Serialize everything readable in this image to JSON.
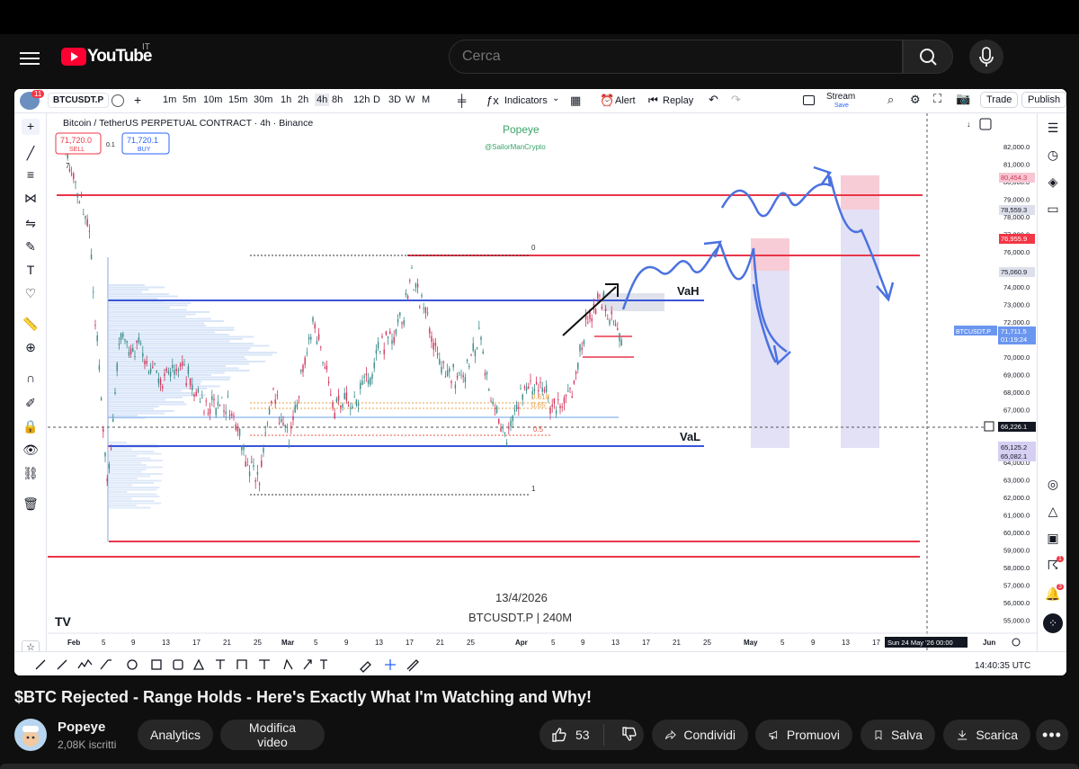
{
  "header": {
    "country": "IT",
    "logo_text": "YouTube",
    "search_placeholder": "Cerca"
  },
  "tv_toolbar": {
    "badge": "11",
    "symbol": "BTCUSDT.P",
    "timeframes": [
      "1m",
      "5m",
      "10m",
      "15m",
      "30m",
      "1h",
      "2h",
      "4h",
      "8h",
      "12h",
      "D",
      "3D",
      "W",
      "M"
    ],
    "active_timeframe": "4h",
    "indicators": "Indicators",
    "alert": "Alert",
    "replay": "Replay",
    "stream": "Stream",
    "stream_sub": "Save",
    "trade": "Trade",
    "publish": "Publish"
  },
  "chart": {
    "symbol_title": "Bitcoin / TetherUS PERPETUAL CONTRACT · 4h · Binance",
    "sell_price": "71,720.0",
    "sell_label": "SELL",
    "spread": "0.1",
    "buy_price": "71,720.1",
    "buy_label": "BUY",
    "collapse": "7",
    "watermark_name": "Popeye",
    "watermark_handle": "@SailorManCrypto",
    "currency": "USDT",
    "vah_label": "VaH",
    "val_label": "VaL",
    "fib_top": "0",
    "fib_bottom": "1",
    "fib_618": "0.618",
    "fib_65": "0.65",
    "fib_5": "0.5",
    "date_stamp": "13/4/2026",
    "symbol_stamp": "BTCUSDT.P | 240M",
    "price_axis": [
      "82,000.0",
      "81,000.0",
      "80,000.0",
      "79,000.0",
      "78,000.0",
      "77,000.0",
      "76,000.0",
      "75,000.0",
      "74,000.0",
      "73,000.0",
      "72,000.0",
      "71,000.0",
      "70,000.0",
      "69,000.0",
      "68,000.0",
      "67,000.0",
      "66,000.0",
      "65,000.0",
      "64,000.0",
      "63,000.0",
      "62,000.0",
      "61,000.0",
      "60,000.0",
      "59,000.0",
      "58,000.0",
      "57,000.0",
      "56,000.0",
      "55,000.0"
    ],
    "price_badges": {
      "b1": "80,454.3",
      "b2": "78,559.3",
      "b3": "76,955.9",
      "b4": "75,060.9",
      "current_symbol": "BTCUSDT.P",
      "current_price": "71,711.5",
      "countdown": "01:19:24",
      "cursor": "66,226.1",
      "b5": "65,125.2",
      "b6": "65,082.1"
    },
    "time_axis": [
      "Feb",
      "5",
      "9",
      "13",
      "17",
      "21",
      "25",
      "Mar",
      "5",
      "9",
      "13",
      "17",
      "21",
      "25",
      "Apr",
      "5",
      "9",
      "13",
      "17",
      "21",
      "25",
      "May",
      "5",
      "9",
      "13",
      "17",
      "Jun"
    ],
    "time_cursor": "Sun 24 May '26  00:00",
    "clock": "14:40:35 UTC",
    "colors": {
      "red_line": "#e8364a",
      "blue_line": "#3a55d8",
      "arrow_blue": "#4a72e0",
      "pink_zone": "#f7c6d2",
      "lavender_zone": "#dcd9f2"
    }
  },
  "right_badges": {
    "notif1": "1",
    "notif2": "3"
  },
  "video": {
    "title": "$BTC Rejected - Range Holds - Here's Exactly What I'm Watching and Why!",
    "channel": "Popeye",
    "subscribers": "2,08K iscritti",
    "analytics": "Analytics",
    "edit": "Modifica video",
    "likes": "53",
    "share": "Condividi",
    "promote": "Promuovi",
    "save": "Salva",
    "download": "Scarica"
  }
}
